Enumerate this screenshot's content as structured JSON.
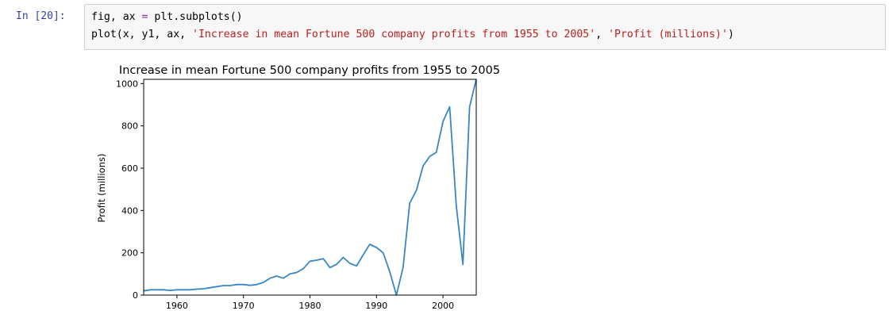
{
  "cell": {
    "prompt": "In  [20]:",
    "code": {
      "line1": {
        "a": "fig, ax ",
        "op": "=",
        "b": " plt.subplots()"
      },
      "line2": {
        "a": "plot(x, y1, ax, ",
        "s1": "'Increase in mean Fortune 500 company profits from 1955 to 2005'",
        "b": ", ",
        "s2": "'Profit (millions)'",
        "c": ")"
      }
    }
  },
  "chart_data": {
    "type": "line",
    "title": "Increase in mean Fortune 500 company profits from 1955 to 2005",
    "xlabel": "",
    "ylabel": "Profit (millions)",
    "xlim": [
      1955,
      2005
    ],
    "ylim": [
      0,
      1020
    ],
    "xticks": [
      1960,
      1970,
      1980,
      1990,
      2000
    ],
    "yticks": [
      0,
      200,
      400,
      600,
      800,
      1000
    ],
    "grid": false,
    "line_color": "#3a86c3",
    "series": [
      {
        "x": [
          1955,
          1956,
          1957,
          1958,
          1959,
          1960,
          1961,
          1962,
          1963,
          1964,
          1965,
          1966,
          1967,
          1968,
          1969,
          1970,
          1971,
          1972,
          1973,
          1974,
          1975,
          1976,
          1977,
          1978,
          1979,
          1980,
          1981,
          1982,
          1983,
          1984,
          1985,
          1986,
          1987,
          1988,
          1989,
          1990,
          1991,
          1992,
          1993,
          1994,
          1995,
          1996,
          1997,
          1998,
          1999,
          2000,
          2001,
          2002,
          2003,
          2004,
          2005
        ],
        "values": [
          20,
          25,
          25,
          25,
          22,
          25,
          25,
          25,
          28,
          30,
          35,
          40,
          45,
          45,
          50,
          50,
          46,
          50,
          60,
          80,
          90,
          80,
          100,
          107,
          125,
          160,
          165,
          172,
          130,
          145,
          178,
          150,
          138,
          190,
          240,
          225,
          200,
          110,
          0,
          130,
          435,
          495,
          610,
          655,
          675,
          820,
          890,
          420,
          145,
          890,
          1020
        ]
      }
    ]
  }
}
